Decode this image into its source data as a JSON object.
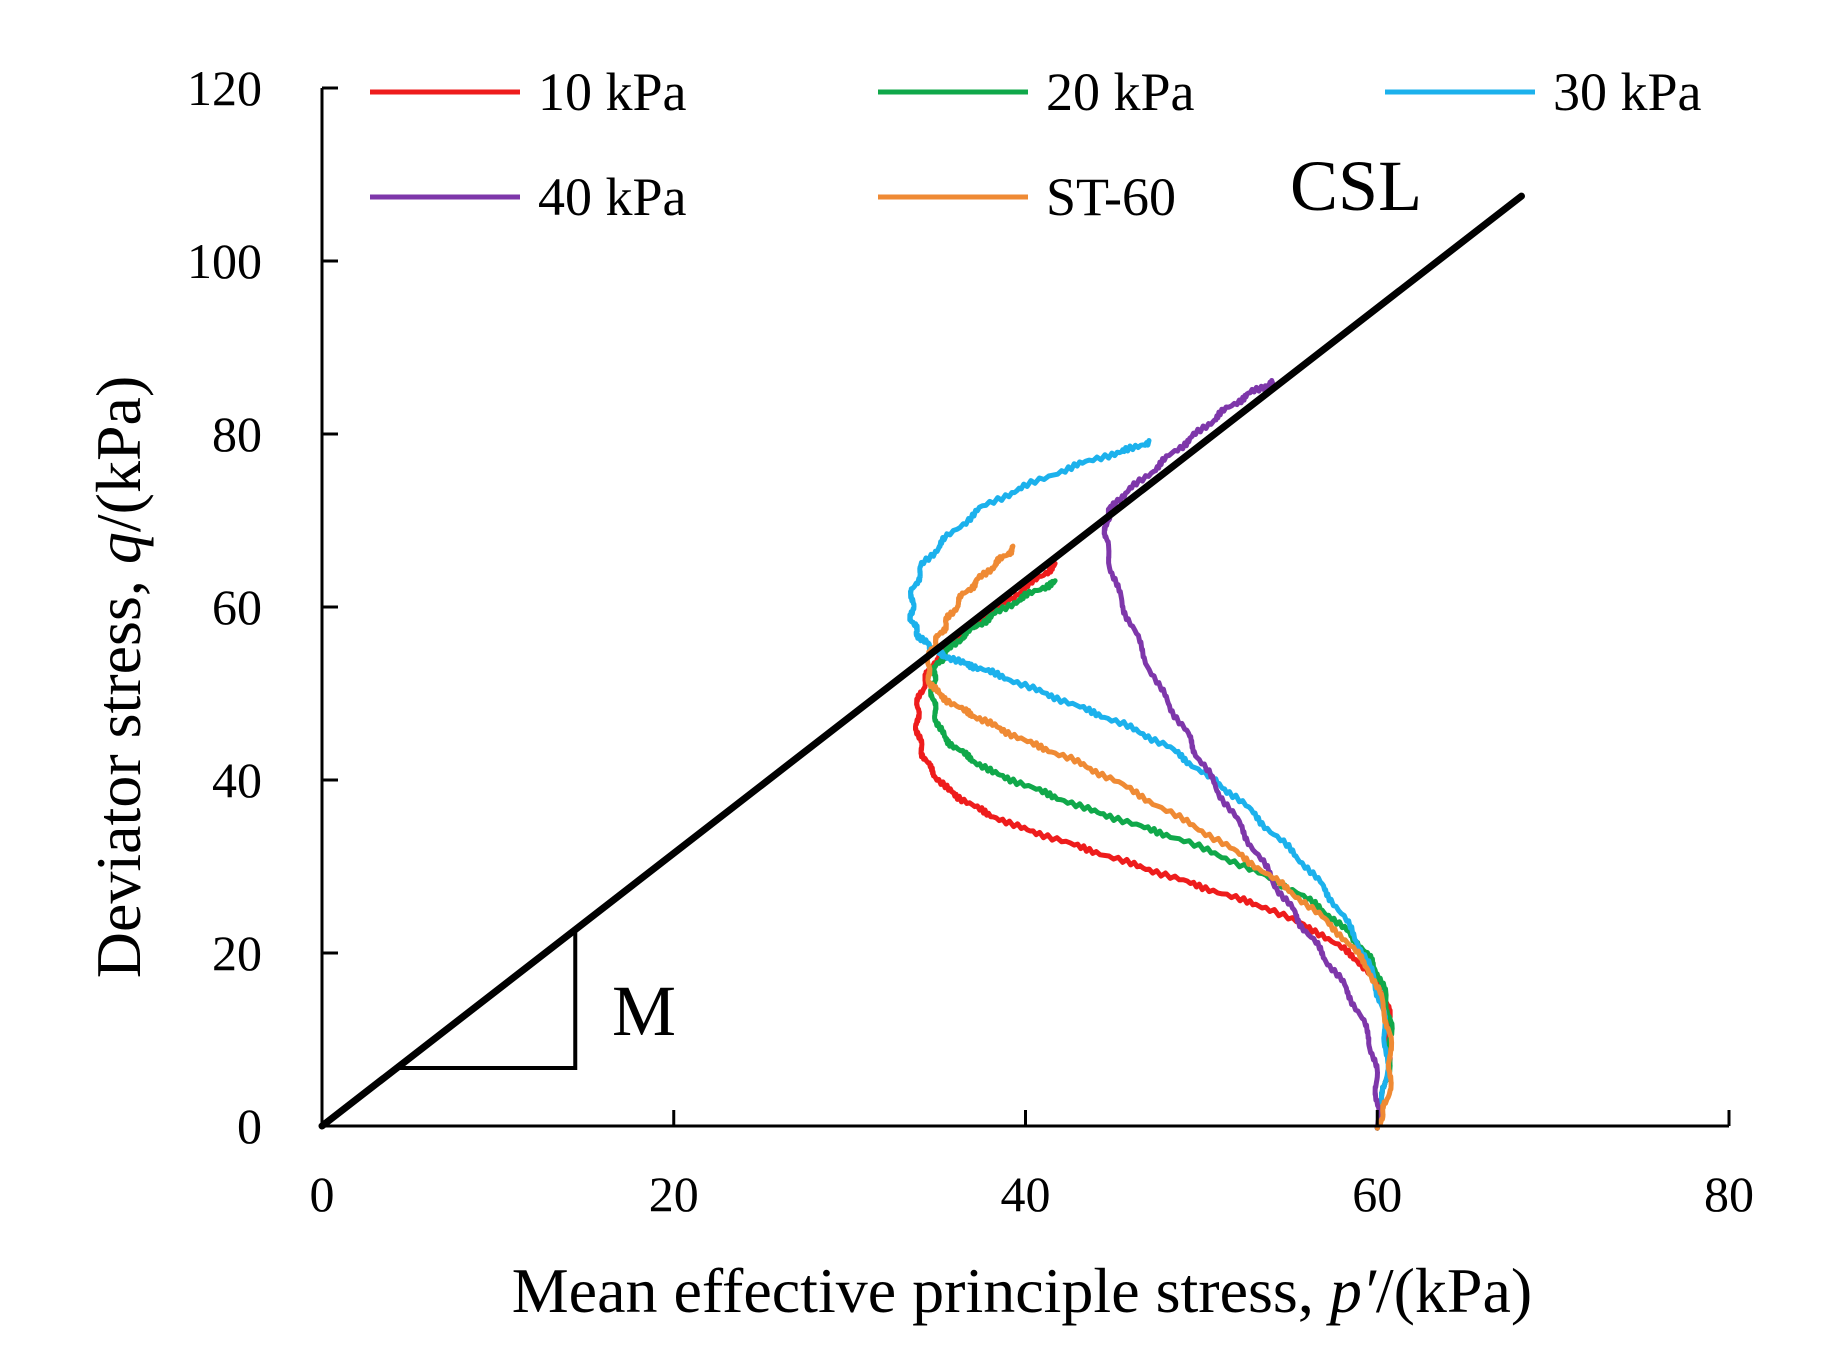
{
  "chart_data": {
    "type": "line",
    "title": "",
    "xlabel": {
      "prefix": "Mean effective principle stress, ",
      "symbol": "p′",
      "suffix": "/(kPa)"
    },
    "ylabel": {
      "prefix": "Deviator stress, ",
      "symbol": "q",
      "suffix": "/(kPa)"
    },
    "xlim": [
      0,
      80
    ],
    "ylim": [
      0,
      120
    ],
    "xticks": [
      "0",
      "20",
      "40",
      "60",
      "80"
    ],
    "yticks": [
      "0",
      "20",
      "40",
      "60",
      "80",
      "100",
      "120"
    ],
    "grid": false,
    "legend_position": "top",
    "series": [
      {
        "name": "10 kPa",
        "color": "#ee1c1c",
        "x": [
          60,
          60.5,
          60.8,
          60.2,
          59,
          57,
          54,
          51,
          48,
          45,
          42,
          39,
          37,
          35.5,
          34.5,
          34,
          33.8,
          34,
          34.6,
          35.5,
          36.5,
          38.5,
          40.5,
          41.8
        ],
        "y": [
          0,
          5,
          12,
          16,
          19,
          22,
          25,
          27,
          29,
          31,
          33,
          35,
          37,
          39,
          41.5,
          44,
          47,
          50,
          53,
          55.5,
          57,
          60,
          63,
          65
        ]
      },
      {
        "name": "20 kPa",
        "color": "#10a84a",
        "x": [
          60,
          60.5,
          60.8,
          60.6,
          60,
          59,
          57.5,
          55.5,
          52.5,
          49,
          46,
          43,
          40.5,
          38,
          36.5,
          35.3,
          34.8,
          34.7,
          35,
          35.8,
          37,
          38.5,
          40.2,
          41.8
        ],
        "y": [
          0,
          5,
          10,
          14,
          18,
          21,
          24,
          27,
          30,
          33,
          35,
          37,
          39,
          41,
          43,
          45,
          48,
          51,
          53.5,
          55.5,
          57.5,
          59.5,
          61.5,
          63
        ]
      },
      {
        "name": "30 kPa",
        "color": "#1cb1ec",
        "x": [
          60,
          60.5,
          60.5,
          60,
          59,
          57.5,
          56,
          54,
          52,
          50,
          48,
          45.5,
          43,
          40.5,
          38,
          36.5,
          35.2,
          34.5,
          33.8,
          33.5,
          33.6,
          34.2,
          35.5,
          37.5,
          40,
          43,
          45.5,
          47
        ],
        "y": [
          0,
          5,
          11,
          16,
          21,
          26,
          30,
          34,
          38,
          41,
          44,
          46.5,
          48.5,
          50.5,
          52.5,
          53.5,
          54.5,
          55.5,
          57,
          59,
          62,
          65,
          68,
          71.5,
          74,
          76.5,
          78,
          79
        ]
      },
      {
        "name": "40 kPa",
        "color": "#7e37aa",
        "x": [
          60,
          60,
          59.6,
          58.5,
          57.2,
          55.8,
          54.5,
          53,
          51.5,
          50,
          49,
          47.5,
          46.2,
          45.2,
          44.6,
          44.6,
          45,
          46.8,
          48.5,
          50,
          51.5,
          53,
          54.2
        ],
        "y": [
          0,
          5,
          10,
          15,
          19,
          23,
          27,
          32,
          37,
          42,
          46,
          51,
          57,
          62,
          67,
          70,
          72,
          75,
          78,
          80.5,
          83,
          85,
          86
        ]
      },
      {
        "name": "ST-60",
        "color": "#ef8a34",
        "x": [
          60,
          60.6,
          60.8,
          60.5,
          59.6,
          58,
          55.8,
          53.5,
          51,
          48,
          45,
          42.5,
          40,
          38,
          36.5,
          35,
          34.4,
          34.6,
          35.2,
          35.7,
          36.5,
          37.5,
          38.6,
          39.4
        ],
        "y": [
          0,
          3,
          8,
          13,
          18,
          22,
          26,
          29.5,
          33,
          36.5,
          40,
          42.5,
          44.5,
          46.5,
          48,
          50,
          52,
          55,
          57,
          59,
          61.5,
          63.5,
          65.5,
          67
        ]
      }
    ],
    "csl": {
      "label": "CSL",
      "color": "#000000",
      "x": [
        0,
        68.2
      ],
      "y": [
        0,
        107.5
      ]
    },
    "slope_triangle": {
      "label": "M",
      "x": [
        4.3,
        14.4
      ],
      "y": [
        6.7,
        22.4
      ]
    }
  }
}
